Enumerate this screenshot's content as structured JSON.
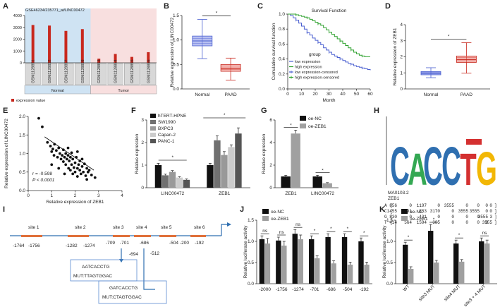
{
  "colors": {
    "red": "#c8281e",
    "blue": "#4a5fd0",
    "green": "#2ca02c",
    "boxblue": "#7b8be6",
    "boxred": "#f08a84",
    "black": "#111111",
    "grey": "#a0a0a0",
    "normal_bg": "#cfe3f3",
    "tumor_bg": "#f8dfdf",
    "logo_blue": "#2f6fb0",
    "logo_red": "#d43030",
    "logo_green": "#34a853",
    "logo_yellow": "#f2b705"
  },
  "panel_labels": [
    "A",
    "B",
    "C",
    "D",
    "E",
    "F",
    "G",
    "H",
    "I",
    "J",
    "K"
  ],
  "chart_data": [
    {
      "panel": "A",
      "type": "bar",
      "title": "GSE46234/235771_at/LINC00472",
      "categories": [
        "GSM1128851",
        "GSM1128852",
        "GSM1128857",
        "GSM1128858",
        "GSM1128853",
        "GSM1128854",
        "GSM1128855",
        "GSM1128856"
      ],
      "values": [
        3200,
        3150,
        2700,
        2850,
        350,
        750,
        500,
        900
      ],
      "groups": [
        "Normal",
        "Tumor"
      ],
      "group_sizes": [
        4,
        4
      ],
      "yticks": [
        0,
        1000,
        2000,
        3000,
        4000
      ],
      "ytick_labels": [
        "0",
        "1000",
        "2000",
        "3000",
        "4000"
      ],
      "ylim": [
        0,
        4000
      ],
      "legend": "expression value"
    },
    {
      "panel": "B",
      "type": "box",
      "categories": [
        "Normal",
        "PAAD"
      ],
      "boxes": [
        {
          "min": 0.62,
          "q1": 0.88,
          "median": 0.98,
          "q3": 1.08,
          "max": 1.42
        },
        {
          "min": 0.18,
          "q1": 0.36,
          "median": 0.42,
          "q3": 0.5,
          "max": 0.63
        }
      ],
      "ylabel": "Relative expression of LINC00472",
      "ylim": [
        0,
        1.5
      ],
      "yticks": [
        0,
        0.5,
        1.0,
        1.5
      ],
      "ytick_labels": [
        "0.0",
        "0.5",
        "1.0",
        "1.5"
      ],
      "sig": "*"
    },
    {
      "panel": "C",
      "type": "line",
      "title": "Survival Function",
      "xlabel": "Month",
      "ylabel": "Cumulative survival function",
      "xlim": [
        0,
        60
      ],
      "ylim": [
        0,
        1
      ],
      "xticks": [
        0,
        10,
        20,
        30,
        40,
        50,
        60
      ],
      "xtick_labels": [
        "0",
        "10",
        "20",
        "30",
        "40",
        "50",
        "60"
      ],
      "yticks": [
        0,
        0.2,
        0.4,
        0.6,
        0.8,
        1.0
      ],
      "ytick_labels": [
        "0.0",
        "0.2",
        "0.4",
        "0.6",
        "0.8",
        "1.0"
      ],
      "legend_title": "group",
      "legend": [
        "low expression",
        "high expression",
        "low expression-censored",
        "high expression-censored"
      ],
      "series": [
        {
          "name": "low expression",
          "x": [
            0,
            2,
            4,
            6,
            8,
            10,
            12,
            14,
            16,
            18,
            20,
            22,
            24,
            26,
            28,
            30,
            32,
            34,
            36,
            38,
            40,
            42,
            44,
            46,
            48,
            50,
            52,
            54,
            56,
            58,
            60
          ],
          "y": [
            1,
            0.98,
            0.95,
            0.92,
            0.88,
            0.84,
            0.8,
            0.75,
            0.72,
            0.68,
            0.65,
            0.62,
            0.59,
            0.55,
            0.52,
            0.49,
            0.46,
            0.44,
            0.42,
            0.4,
            0.38,
            0.36,
            0.34,
            0.33,
            0.31,
            0.3,
            0.29,
            0.28,
            0.27,
            0.26,
            0.25
          ]
        },
        {
          "name": "high expression",
          "x": [
            0,
            2,
            4,
            6,
            8,
            10,
            12,
            14,
            16,
            18,
            20,
            22,
            24,
            26,
            28,
            30,
            32,
            34,
            36,
            38,
            40,
            42,
            44,
            46,
            48,
            50,
            52,
            54,
            56,
            58,
            60
          ],
          "y": [
            1,
            1,
            1,
            0.99,
            0.98,
            0.97,
            0.96,
            0.95,
            0.93,
            0.91,
            0.89,
            0.87,
            0.85,
            0.82,
            0.79,
            0.76,
            0.73,
            0.7,
            0.67,
            0.64,
            0.61,
            0.58,
            0.55,
            0.52,
            0.49,
            0.47,
            0.45,
            0.44,
            0.43,
            0.43,
            0.43
          ]
        }
      ]
    },
    {
      "panel": "D",
      "type": "box",
      "categories": [
        "Normal",
        "PAAD"
      ],
      "boxes": [
        {
          "min": 0.7,
          "q1": 0.88,
          "median": 0.98,
          "q3": 1.08,
          "max": 1.32
        },
        {
          "min": 0.98,
          "q1": 1.65,
          "median": 1.82,
          "q3": 2.05,
          "max": 2.88
        }
      ],
      "ylabel": "Relative expression of ZEB1",
      "ylim": [
        0,
        4
      ],
      "yticks": [
        0,
        1,
        2,
        3,
        4
      ],
      "ytick_labels": [
        "0",
        "1",
        "2",
        "3",
        "4"
      ],
      "sig": "*"
    },
    {
      "panel": "E",
      "type": "scatter",
      "xlabel": "Relative expression of ZEB1",
      "ylabel": "Relative expression of LINC00472",
      "xlim": [
        0,
        4
      ],
      "ylim": [
        0,
        2
      ],
      "xticks": [
        0,
        1,
        2,
        3,
        4
      ],
      "xtick_labels": [
        "0",
        "1",
        "2",
        "3",
        "4"
      ],
      "yticks": [
        0,
        0.5,
        1.0,
        1.5,
        2.0
      ],
      "ytick_labels": [
        "0.0",
        "0.5",
        "1.0",
        "1.5",
        "2.0"
      ],
      "r": "r = -0.598",
      "p": "P < 0.0001",
      "fit": [
        [
          0.7,
          1.45
        ],
        [
          2.8,
          0.55
        ]
      ],
      "points": [
        [
          0.45,
          1.95
        ],
        [
          0.6,
          1.72
        ],
        [
          0.82,
          1.3
        ],
        [
          0.95,
          1.2
        ],
        [
          1.0,
          1.05
        ],
        [
          1.05,
          1.12
        ],
        [
          1.1,
          0.95
        ],
        [
          1.12,
          1.25
        ],
        [
          1.2,
          1.08
        ],
        [
          1.25,
          0.9
        ],
        [
          1.3,
          1.15
        ],
        [
          1.35,
          1.0
        ],
        [
          1.4,
          0.85
        ],
        [
          1.45,
          0.95
        ],
        [
          1.5,
          1.1
        ],
        [
          1.5,
          0.78
        ],
        [
          1.55,
          0.9
        ],
        [
          1.6,
          1.0
        ],
        [
          1.6,
          0.7
        ],
        [
          1.65,
          0.85
        ],
        [
          1.7,
          0.95
        ],
        [
          1.72,
          0.6
        ],
        [
          1.75,
          0.8
        ],
        [
          1.8,
          0.9
        ],
        [
          1.8,
          0.55
        ],
        [
          1.85,
          0.7
        ],
        [
          1.9,
          0.85
        ],
        [
          1.9,
          0.45
        ],
        [
          1.95,
          0.62
        ],
        [
          2.0,
          0.75
        ],
        [
          2.0,
          0.5
        ],
        [
          2.05,
          0.9
        ],
        [
          2.1,
          0.6
        ],
        [
          2.1,
          0.38
        ],
        [
          2.15,
          0.7
        ],
        [
          2.2,
          0.55
        ],
        [
          2.2,
          0.8
        ],
        [
          2.25,
          0.45
        ],
        [
          2.3,
          0.65
        ],
        [
          2.35,
          0.5
        ],
        [
          2.4,
          0.72
        ],
        [
          2.45,
          0.4
        ],
        [
          2.5,
          0.6
        ],
        [
          2.55,
          0.5
        ],
        [
          2.6,
          0.55
        ],
        [
          2.7,
          0.42
        ],
        [
          2.85,
          0.35
        ],
        [
          1.0,
          0.7
        ],
        [
          1.3,
          0.6
        ],
        [
          2.1,
          1.05
        ],
        [
          1.7,
          1.15
        ],
        [
          2.5,
          0.3
        ],
        [
          1.85,
          1.02
        ],
        [
          2.3,
          0.85
        ],
        [
          1.55,
          0.45
        ]
      ]
    },
    {
      "panel": "F",
      "type": "bar",
      "ylabel": "Relative expression",
      "categories": [
        "LINC00472",
        "ZEB1"
      ],
      "series": [
        {
          "name": "hTERT-HPNE",
          "values": [
            1.0,
            1.0
          ],
          "err": [
            0.08,
            0.08
          ],
          "color": "#111111"
        },
        {
          "name": "SW1990",
          "values": [
            0.55,
            2.1
          ],
          "err": [
            0.05,
            0.2
          ],
          "color": "#707070"
        },
        {
          "name": "BXPC3",
          "values": [
            0.7,
            1.45
          ],
          "err": [
            0.06,
            0.15
          ],
          "color": "#999999"
        },
        {
          "name": "Capan-2",
          "values": [
            0.45,
            1.8
          ],
          "err": [
            0.04,
            0.1
          ],
          "color": "#cccccc"
        },
        {
          "name": "PANC-1",
          "values": [
            0.35,
            2.4
          ],
          "err": [
            0.04,
            0.25
          ],
          "color": "#555555"
        }
      ],
      "ylim": [
        0,
        3
      ],
      "yticks": [
        0,
        1,
        2,
        3
      ],
      "ytick_labels": [
        "0",
        "1",
        "2",
        "3"
      ],
      "sig": [
        "*",
        "*"
      ]
    },
    {
      "panel": "G",
      "type": "bar",
      "ylabel": "Relative expression",
      "categories": [
        "ZEB1",
        "LINC00472"
      ],
      "series": [
        {
          "name": "oe-NC",
          "values": [
            1.0,
            1.0
          ],
          "err": [
            0.1,
            0.1
          ],
          "color": "#111111"
        },
        {
          "name": "oe-ZEB1",
          "values": [
            4.8,
            0.4
          ],
          "err": [
            0.3,
            0.05
          ],
          "color": "#a0a0a0"
        }
      ],
      "ylim": [
        0,
        6
      ],
      "yticks": [
        0,
        2,
        4,
        6
      ],
      "ytick_labels": [
        "0",
        "2",
        "4",
        "6"
      ],
      "sig": [
        "*",
        "*"
      ]
    },
    {
      "panel": "J",
      "type": "bar",
      "ylabel": "Relative luciferase activity",
      "categories": [
        "-2000",
        "-1756",
        "-1274",
        "-701",
        "-686",
        "-504",
        "-192"
      ],
      "series": [
        {
          "name": "oe-NC",
          "values": [
            1.05,
            1.02,
            1.18,
            1.05,
            1.1,
            1.1,
            1.0
          ],
          "err": [
            0.08,
            0.08,
            0.1,
            0.08,
            0.08,
            0.08,
            0.08
          ],
          "color": "#111111"
        },
        {
          "name": "oe-ZEB1",
          "values": [
            0.95,
            0.9,
            1.05,
            0.6,
            0.48,
            0.45,
            0.45
          ],
          "err": [
            0.12,
            0.1,
            0.1,
            0.06,
            0.06,
            0.06,
            0.06
          ],
          "color": "#a0a0a0"
        }
      ],
      "ylim": [
        0,
        1.5
      ],
      "yticks": [
        0,
        0.5,
        1.0,
        1.5
      ],
      "ytick_labels": [
        "0.0",
        "0.5",
        "1.0",
        "1.5"
      ],
      "sig": [
        "ns",
        "ns",
        "ns",
        "*",
        "*",
        "*",
        "*"
      ]
    },
    {
      "panel": "K",
      "type": "bar",
      "ylabel": "Relative luciferase activity",
      "categories": [
        "WT",
        "site3 MUT",
        "site4 MUT",
        "site3 + 4 MUT"
      ],
      "series": [
        {
          "name": "oe-NC",
          "values": [
            0.92,
            1.25,
            0.95,
            1.0
          ],
          "err": [
            0.06,
            0.15,
            0.08,
            0.08
          ],
          "color": "#111111"
        },
        {
          "name": "oe-ZEB1",
          "values": [
            0.35,
            0.5,
            0.52,
            0.95
          ],
          "err": [
            0.05,
            0.05,
            0.05,
            0.08
          ],
          "color": "#a0a0a0"
        }
      ],
      "ylim": [
        0,
        1.5
      ],
      "yticks": [
        0,
        0.5,
        1.0,
        1.5
      ],
      "ytick_labels": [
        "0.0",
        "0.5",
        "1.0",
        "1.5"
      ],
      "sig": [
        "*",
        "*",
        "*",
        "ns"
      ]
    }
  ],
  "panel_h": {
    "motif_id": "MA0103.2",
    "motif_name": "ZEB1",
    "logo_letters": [
      "C",
      "A",
      "C",
      "C",
      "T",
      "G"
    ],
    "matrix": [
      {
        "base": "A",
        "values": [
          "856",
          "0",
          "1197",
          "0",
          "3555",
          "0",
          "0",
          "0",
          "0"
        ]
      },
      {
        "base": "C",
        "values": [
          "1455",
          "2991",
          "333",
          "3170",
          "0",
          "3555",
          "3555",
          "0",
          "0"
        ]
      },
      {
        "base": "G",
        "values": [
          "830",
          "0",
          "431",
          "0",
          "0",
          "0",
          "0",
          "3555",
          "3"
        ]
      },
      {
        "base": "T",
        "values": [
          "414",
          "564",
          "1594",
          "385",
          "0",
          "0",
          "0",
          "0",
          "3555"
        ]
      }
    ]
  },
  "panel_i": {
    "sites": [
      "site 1",
      "site 2",
      "site 3",
      "site 4",
      "site 5",
      "site 6"
    ],
    "positions": [
      "-1764",
      "-1756",
      "-1282",
      "-1274",
      "-709",
      "-701",
      "-694",
      "-686",
      "-512",
      "-504",
      "-200",
      "-192"
    ],
    "box1": {
      "wt": "AATCACCTG",
      "mut": "MUT:TTAGTGGAC"
    },
    "box2": {
      "wt": "GATCACCTG",
      "mut": "MUT:CTAGTGGAC"
    }
  },
  "legends": {
    "g": [
      "oe-NC",
      "oe-ZEB1"
    ],
    "j": [
      "oe-NC",
      "oe-ZEB1"
    ],
    "k": [
      "oe-NC",
      "oe-ZEB1"
    ]
  },
  "small_text": {
    "a_normal": "Normal",
    "a_tumor": "Tumor",
    "a_legend": "expression value",
    "b_x1": "Normal",
    "b_x2": "PAAD",
    "d_x1": "Normal",
    "d_x2": "PAAD",
    "ns": "ns"
  }
}
